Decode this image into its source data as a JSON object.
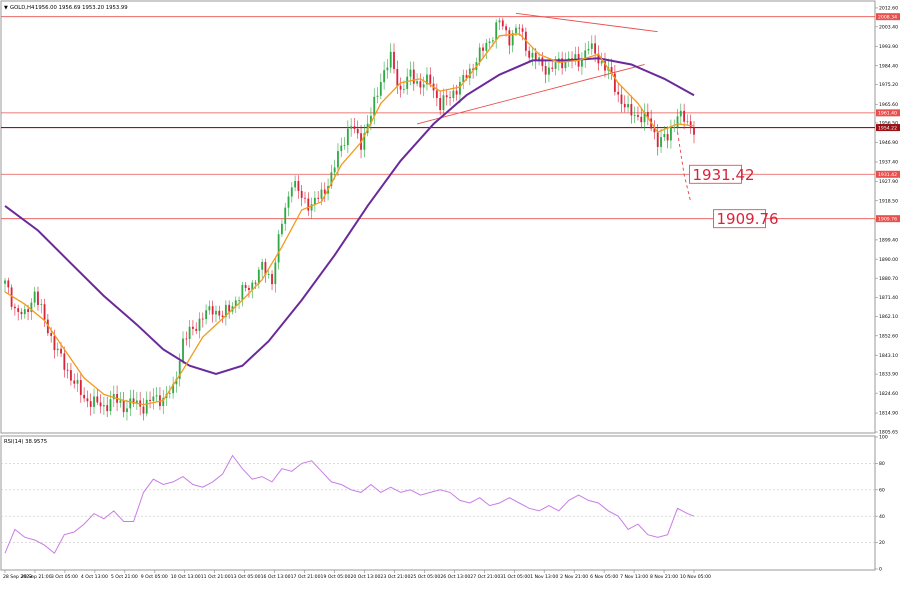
{
  "header": {
    "symbol_label": "GOLD,H4",
    "ohlc_label": "1956.00 1956.69 1953.20 1953.99"
  },
  "rsi_panel": {
    "label": "RSI(14) 38.9575"
  },
  "price_axis": {
    "ticks": [
      "2012.60",
      "2003.40",
      "1993.90",
      "1984.40",
      "1975.20",
      "1965.60",
      "1956.50",
      "1946.90",
      "1937.40",
      "1927.90",
      "1918.50",
      "1909.20",
      "1899.40",
      "1890.00",
      "1880.70",
      "1871.40",
      "1862.10",
      "1852.60",
      "1843.10",
      "1833.90",
      "1824.60",
      "1814.90",
      "1805.65"
    ],
    "range": [
      1805.65,
      2015.5
    ]
  },
  "rsi_axis": {
    "ticks": [
      "100",
      "80",
      "60",
      "40",
      "20",
      "0"
    ],
    "range": [
      0,
      100
    ]
  },
  "time_axis": {
    "labels": [
      "28 Sep 2023",
      "29 Sep 21:00",
      "3 Oct 05:00",
      "4 Oct 13:00",
      "5 Oct 21:00",
      "9 Oct 05:00",
      "10 Oct 13:00",
      "11 Oct 21:00",
      "13 Oct 05:00",
      "16 Oct 13:00",
      "17 Oct 21:00",
      "19 Oct 05:00",
      "20 Oct 13:00",
      "23 Oct 21:00",
      "25 Oct 05:00",
      "26 Oct 13:00",
      "27 Oct 21:00",
      "31 Oct 05:00",
      "1 Nov 13:00",
      "2 Nov 21:00",
      "6 Nov 05:00",
      "7 Nov 13:00",
      "8 Nov 21:00",
      "10 Nov 05:00"
    ]
  },
  "levels": [
    {
      "price": 2008.34,
      "tag": "2008.34"
    },
    {
      "price": 1961.4,
      "tag": "1961.40"
    },
    {
      "price": 1954.22,
      "tag": "1954.22"
    },
    {
      "price": 1931.42,
      "tag": "1931.42"
    },
    {
      "price": 1909.76,
      "tag": "1909.76"
    }
  ],
  "callouts": [
    {
      "value": "1931.42",
      "price": 1931.42
    },
    {
      "value": "1909.76",
      "price": 1909.76
    }
  ],
  "colors": {
    "bull": "#2eaa44",
    "bear": "#d8233b",
    "ema_fast": "#f39a1c",
    "ma_slow": "#6a2a9a",
    "rsi": "#c87de6",
    "level": "#e8504e",
    "current": "#9a1015",
    "grid": "#e0e0e0"
  },
  "chart_data": {
    "type": "candlestick",
    "symbol": "GOLD",
    "timeframe": "H4",
    "ohlc_last": {
      "open": 1956.0,
      "high": 1956.69,
      "low": 1953.2,
      "close": 1953.99
    },
    "price_path": [
      [
        0,
        1878
      ],
      [
        3,
        1866
      ],
      [
        6,
        1862
      ],
      [
        9,
        1874
      ],
      [
        12,
        1860
      ],
      [
        15,
        1848
      ],
      [
        18,
        1838
      ],
      [
        21,
        1830
      ],
      [
        24,
        1822
      ],
      [
        27,
        1820
      ],
      [
        30,
        1818
      ],
      [
        33,
        1822
      ],
      [
        36,
        1818
      ],
      [
        39,
        1820
      ],
      [
        42,
        1818
      ],
      [
        45,
        1822
      ],
      [
        48,
        1822
      ],
      [
        51,
        1826
      ],
      [
        54,
        1850
      ],
      [
        57,
        1856
      ],
      [
        60,
        1862
      ],
      [
        63,
        1866
      ],
      [
        66,
        1862
      ],
      [
        69,
        1868
      ],
      [
        72,
        1874
      ],
      [
        75,
        1878
      ],
      [
        78,
        1886
      ],
      [
        81,
        1880
      ],
      [
        84,
        1908
      ],
      [
        87,
        1928
      ],
      [
        90,
        1920
      ],
      [
        93,
        1916
      ],
      [
        96,
        1922
      ],
      [
        99,
        1930
      ],
      [
        102,
        1946
      ],
      [
        105,
        1955
      ],
      [
        108,
        1947
      ],
      [
        111,
        1960
      ],
      [
        114,
        1978
      ],
      [
        117,
        1988
      ],
      [
        120,
        1972
      ],
      [
        123,
        1980
      ],
      [
        126,
        1975
      ],
      [
        129,
        1977
      ],
      [
        132,
        1965
      ],
      [
        135,
        1970
      ],
      [
        138,
        1975
      ],
      [
        141,
        1982
      ],
      [
        144,
        1990
      ],
      [
        147,
        1997
      ],
      [
        150,
        2006
      ],
      [
        153,
        1998
      ],
      [
        156,
        2003
      ],
      [
        159,
        1990
      ],
      [
        162,
        1986
      ],
      [
        165,
        1982
      ],
      [
        168,
        1986
      ],
      [
        171,
        1988
      ],
      [
        174,
        1986
      ],
      [
        177,
        1994
      ],
      [
        180,
        1988
      ],
      [
        183,
        1982
      ],
      [
        186,
        1970
      ],
      [
        189,
        1962
      ],
      [
        192,
        1960
      ],
      [
        195,
        1958
      ],
      [
        198,
        1948
      ],
      [
        201,
        1949
      ],
      [
        204,
        1961
      ],
      [
        207,
        1956
      ],
      [
        209,
        1954
      ]
    ],
    "ema_fast_path": [
      [
        0,
        1874
      ],
      [
        6,
        1868
      ],
      [
        12,
        1860
      ],
      [
        18,
        1846
      ],
      [
        24,
        1832
      ],
      [
        30,
        1824
      ],
      [
        36,
        1821
      ],
      [
        42,
        1819
      ],
      [
        48,
        1821
      ],
      [
        54,
        1836
      ],
      [
        60,
        1852
      ],
      [
        66,
        1861
      ],
      [
        72,
        1870
      ],
      [
        78,
        1880
      ],
      [
        84,
        1896
      ],
      [
        90,
        1914
      ],
      [
        96,
        1918
      ],
      [
        102,
        1936
      ],
      [
        108,
        1947
      ],
      [
        114,
        1966
      ],
      [
        120,
        1976
      ],
      [
        126,
        1978
      ],
      [
        132,
        1972
      ],
      [
        138,
        1974
      ],
      [
        144,
        1986
      ],
      [
        150,
        1999
      ],
      [
        156,
        2000
      ],
      [
        162,
        1990
      ],
      [
        168,
        1986
      ],
      [
        174,
        1987
      ],
      [
        180,
        1990
      ],
      [
        186,
        1976
      ],
      [
        192,
        1966
      ],
      [
        198,
        1952
      ],
      [
        204,
        1956
      ],
      [
        209,
        1955
      ]
    ],
    "ma_slow_path": [
      [
        0,
        1916
      ],
      [
        10,
        1904
      ],
      [
        20,
        1888
      ],
      [
        30,
        1872
      ],
      [
        40,
        1858
      ],
      [
        48,
        1846
      ],
      [
        56,
        1838
      ],
      [
        64,
        1834
      ],
      [
        72,
        1838
      ],
      [
        80,
        1850
      ],
      [
        90,
        1870
      ],
      [
        100,
        1892
      ],
      [
        110,
        1916
      ],
      [
        120,
        1938
      ],
      [
        130,
        1956
      ],
      [
        140,
        1970
      ],
      [
        150,
        1980
      ],
      [
        160,
        1987
      ],
      [
        170,
        1987
      ],
      [
        180,
        1988
      ],
      [
        190,
        1985
      ],
      [
        200,
        1978
      ],
      [
        209,
        1970
      ]
    ],
    "rsi_path": [
      [
        0,
        12
      ],
      [
        3,
        30
      ],
      [
        6,
        24
      ],
      [
        9,
        22
      ],
      [
        12,
        18
      ],
      [
        15,
        12
      ],
      [
        18,
        26
      ],
      [
        21,
        28
      ],
      [
        24,
        34
      ],
      [
        27,
        42
      ],
      [
        30,
        38
      ],
      [
        33,
        44
      ],
      [
        36,
        36
      ],
      [
        39,
        36
      ],
      [
        42,
        58
      ],
      [
        45,
        68
      ],
      [
        48,
        64
      ],
      [
        51,
        66
      ],
      [
        54,
        70
      ],
      [
        57,
        64
      ],
      [
        60,
        62
      ],
      [
        63,
        66
      ],
      [
        66,
        72
      ],
      [
        69,
        86
      ],
      [
        72,
        76
      ],
      [
        75,
        68
      ],
      [
        78,
        70
      ],
      [
        81,
        66
      ],
      [
        84,
        76
      ],
      [
        87,
        74
      ],
      [
        90,
        80
      ],
      [
        93,
        82
      ],
      [
        96,
        74
      ],
      [
        99,
        66
      ],
      [
        102,
        64
      ],
      [
        105,
        60
      ],
      [
        108,
        58
      ],
      [
        111,
        64
      ],
      [
        114,
        58
      ],
      [
        117,
        62
      ],
      [
        120,
        58
      ],
      [
        123,
        60
      ],
      [
        126,
        56
      ],
      [
        129,
        58
      ],
      [
        132,
        60
      ],
      [
        135,
        58
      ],
      [
        138,
        52
      ],
      [
        141,
        50
      ],
      [
        144,
        54
      ],
      [
        147,
        48
      ],
      [
        150,
        50
      ],
      [
        153,
        54
      ],
      [
        156,
        50
      ],
      [
        159,
        46
      ],
      [
        162,
        44
      ],
      [
        165,
        48
      ],
      [
        168,
        44
      ],
      [
        171,
        52
      ],
      [
        174,
        56
      ],
      [
        177,
        52
      ],
      [
        180,
        50
      ],
      [
        183,
        44
      ],
      [
        186,
        40
      ],
      [
        189,
        30
      ],
      [
        192,
        34
      ],
      [
        195,
        26
      ],
      [
        198,
        24
      ],
      [
        201,
        26
      ],
      [
        204,
        46
      ],
      [
        207,
        42
      ],
      [
        209,
        40
      ]
    ],
    "trendlines": [
      {
        "x": [
          155,
          198
        ],
        "y": [
          2010,
          2001
        ]
      },
      {
        "x": [
          125,
          194
        ],
        "y": [
          1956,
          1985
        ]
      },
      {
        "x": [
          190,
          196
        ],
        "y": [
          2018,
          2030
        ]
      }
    ],
    "projection": {
      "x": [
        204,
        206,
        208
      ],
      "y": [
        1952,
        1931.42,
        1918
      ]
    },
    "rsi_levels": [
      80,
      60,
      40,
      20
    ]
  }
}
